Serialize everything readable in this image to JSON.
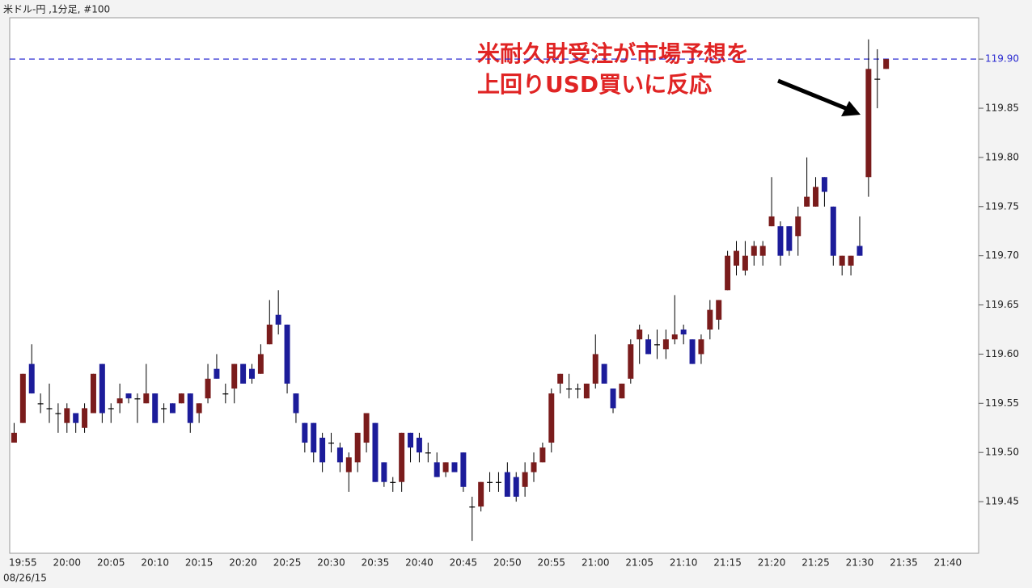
{
  "chart_data": {
    "type": "candlestick",
    "title": "米ドル-円 ,1分足, #100",
    "date_label": "08/26/15",
    "annotation": [
      "米耐久財受注が市場予想を",
      "上回りUSD買いに反応"
    ],
    "annotation_color": "#e02424",
    "up_color": "#7a1c1c",
    "down_color": "#1c1c9a",
    "wick_color": "#000000",
    "reference_line": {
      "value": 119.9,
      "color": "#2a2ad0"
    },
    "ylim": [
      119.3975,
      119.942
    ],
    "yticks": [
      119.45,
      {
        "value": 119.5,
        "label": "119.50"
      },
      119.55,
      {
        "value": 119.6,
        "label": "119.60"
      },
      119.65,
      {
        "value": 119.7,
        "label": "119.70"
      },
      119.75,
      {
        "value": 119.8,
        "label": "119.80"
      },
      119.85,
      {
        "value": 119.9,
        "label": "119.90"
      }
    ],
    "categories": [
      null,
      "19:55",
      null,
      null,
      null,
      null,
      "20:00",
      null,
      null,
      null,
      null,
      "20:05",
      null,
      null,
      null,
      null,
      "20:10",
      null,
      null,
      null,
      null,
      "20:15",
      null,
      null,
      null,
      null,
      "20:20",
      null,
      null,
      null,
      null,
      "20:25",
      null,
      null,
      null,
      null,
      "20:30",
      null,
      null,
      null,
      null,
      "20:35",
      null,
      null,
      null,
      null,
      "20:40",
      null,
      null,
      null,
      null,
      "20:45",
      null,
      null,
      null,
      null,
      "20:50",
      null,
      null,
      null,
      null,
      "20:55",
      null,
      null,
      null,
      null,
      "21:00",
      null,
      null,
      null,
      null,
      "21:05",
      null,
      null,
      null,
      null,
      "21:10",
      null,
      null,
      null,
      null,
      "21:15",
      null,
      null,
      null,
      null,
      "21:20",
      null,
      null,
      null,
      null,
      "21:25",
      null,
      null,
      null,
      null,
      "21:30",
      null,
      null,
      null,
      null,
      "21:35",
      null,
      null,
      null,
      null,
      "21:40",
      null,
      null,
      null
    ],
    "open": [
      119.51,
      119.53,
      119.59,
      119.55,
      119.545,
      119.54,
      119.53,
      119.54,
      119.525,
      119.54,
      119.59,
      119.545,
      119.55,
      119.56,
      119.555,
      119.55,
      119.56,
      119.545,
      119.55,
      119.55,
      119.56,
      119.54,
      119.555,
      119.585,
      119.56,
      119.565,
      119.59,
      119.585,
      119.58,
      119.61,
      119.64,
      119.63,
      119.56,
      119.53,
      119.53,
      119.515,
      119.51,
      119.505,
      119.48,
      119.49,
      119.51,
      119.53,
      119.49,
      119.47,
      119.47,
      119.52,
      119.515,
      119.5,
      119.49,
      119.48,
      119.49,
      119.5,
      119.445,
      119.445,
      119.47,
      119.47,
      119.48,
      119.475,
      119.465,
      119.48,
      119.49,
      119.51,
      119.57,
      119.565,
      119.565,
      119.555,
      119.57,
      119.59,
      119.565,
      119.555,
      119.575,
      119.615,
      119.615,
      119.61,
      119.605,
      119.615,
      119.625,
      119.615,
      119.6,
      119.625,
      119.635,
      119.665,
      119.69,
      119.685,
      119.7,
      119.7,
      119.73,
      119.73,
      119.73,
      119.72,
      119.75,
      119.75,
      119.78,
      119.75,
      119.69,
      119.69,
      119.71,
      119.78,
      119.88,
      119.89,
      null,
      null,
      null,
      null,
      null,
      null,
      null,
      null,
      null,
      null
    ],
    "high": [
      119.53,
      119.58,
      119.61,
      119.56,
      119.57,
      119.55,
      119.55,
      119.54,
      119.55,
      119.58,
      119.59,
      119.55,
      119.57,
      119.56,
      119.56,
      119.59,
      119.56,
      119.55,
      119.55,
      119.56,
      119.56,
      119.55,
      119.59,
      119.6,
      119.57,
      119.59,
      119.59,
      119.59,
      119.61,
      119.655,
      119.665,
      119.63,
      119.56,
      119.53,
      119.53,
      119.52,
      119.52,
      119.51,
      119.5,
      119.52,
      119.54,
      119.53,
      119.49,
      119.475,
      119.52,
      119.52,
      119.52,
      119.51,
      119.5,
      119.49,
      119.49,
      119.5,
      119.455,
      119.47,
      119.48,
      119.48,
      119.49,
      119.48,
      119.49,
      119.5,
      119.51,
      119.565,
      119.58,
      119.58,
      119.57,
      119.57,
      119.62,
      119.59,
      119.565,
      119.57,
      119.615,
      119.63,
      119.62,
      119.625,
      119.625,
      119.66,
      119.63,
      119.615,
      119.62,
      119.655,
      119.655,
      119.705,
      119.715,
      119.715,
      119.715,
      119.715,
      119.78,
      119.735,
      119.73,
      119.75,
      119.8,
      119.78,
      119.78,
      119.75,
      119.7,
      119.7,
      119.74,
      119.92,
      119.91,
      119.9,
      null,
      null,
      null,
      null,
      null,
      null,
      null,
      null,
      null,
      null
    ],
    "low": [
      119.51,
      119.53,
      119.56,
      119.54,
      119.53,
      119.52,
      119.52,
      119.52,
      119.52,
      119.54,
      119.53,
      119.53,
      119.54,
      119.55,
      119.53,
      119.55,
      119.53,
      119.53,
      119.54,
      119.55,
      119.52,
      119.53,
      119.55,
      119.575,
      119.55,
      119.55,
      119.57,
      119.57,
      119.58,
      119.61,
      119.62,
      119.56,
      119.53,
      119.5,
      119.49,
      119.48,
      119.5,
      119.48,
      119.46,
      119.48,
      119.5,
      119.47,
      119.465,
      119.46,
      119.46,
      119.49,
      119.49,
      119.49,
      119.475,
      119.475,
      119.48,
      119.46,
      119.41,
      119.44,
      119.46,
      119.46,
      119.455,
      119.45,
      119.455,
      119.47,
      119.49,
      119.5,
      119.56,
      119.555,
      119.555,
      119.555,
      119.565,
      119.57,
      119.54,
      119.555,
      119.57,
      119.59,
      119.6,
      119.595,
      119.595,
      119.61,
      119.61,
      119.59,
      119.59,
      119.615,
      119.625,
      119.665,
      119.68,
      119.68,
      119.69,
      119.69,
      119.73,
      119.69,
      119.7,
      119.7,
      119.75,
      119.75,
      119.75,
      119.69,
      119.68,
      119.68,
      119.7,
      119.76,
      119.85,
      119.89,
      null,
      null,
      null,
      null,
      null,
      null,
      null,
      null,
      null,
      null
    ],
    "close": [
      119.52,
      119.58,
      119.56,
      119.55,
      119.545,
      119.54,
      119.545,
      119.53,
      119.545,
      119.58,
      119.54,
      119.545,
      119.555,
      119.555,
      119.555,
      119.56,
      119.53,
      119.545,
      119.54,
      119.56,
      119.53,
      119.55,
      119.575,
      119.575,
      119.56,
      119.59,
      119.57,
      119.575,
      119.6,
      119.63,
      119.63,
      119.57,
      119.54,
      119.51,
      119.5,
      119.49,
      119.51,
      119.49,
      119.495,
      119.52,
      119.54,
      119.47,
      119.47,
      119.47,
      119.52,
      119.505,
      119.5,
      119.5,
      119.475,
      119.49,
      119.48,
      119.465,
      119.445,
      119.47,
      119.47,
      119.47,
      119.455,
      119.455,
      119.48,
      119.49,
      119.505,
      119.56,
      119.58,
      119.565,
      119.565,
      119.57,
      119.6,
      119.57,
      119.545,
      119.57,
      119.61,
      119.625,
      119.6,
      119.61,
      119.615,
      119.62,
      119.62,
      119.59,
      119.615,
      119.645,
      119.655,
      119.7,
      119.705,
      119.7,
      119.71,
      119.71,
      119.74,
      119.7,
      119.705,
      119.74,
      119.76,
      119.77,
      119.765,
      119.7,
      119.7,
      119.7,
      119.7,
      119.89,
      119.88,
      119.9,
      null,
      null,
      null,
      null,
      null,
      null,
      null,
      null,
      null,
      null
    ]
  }
}
